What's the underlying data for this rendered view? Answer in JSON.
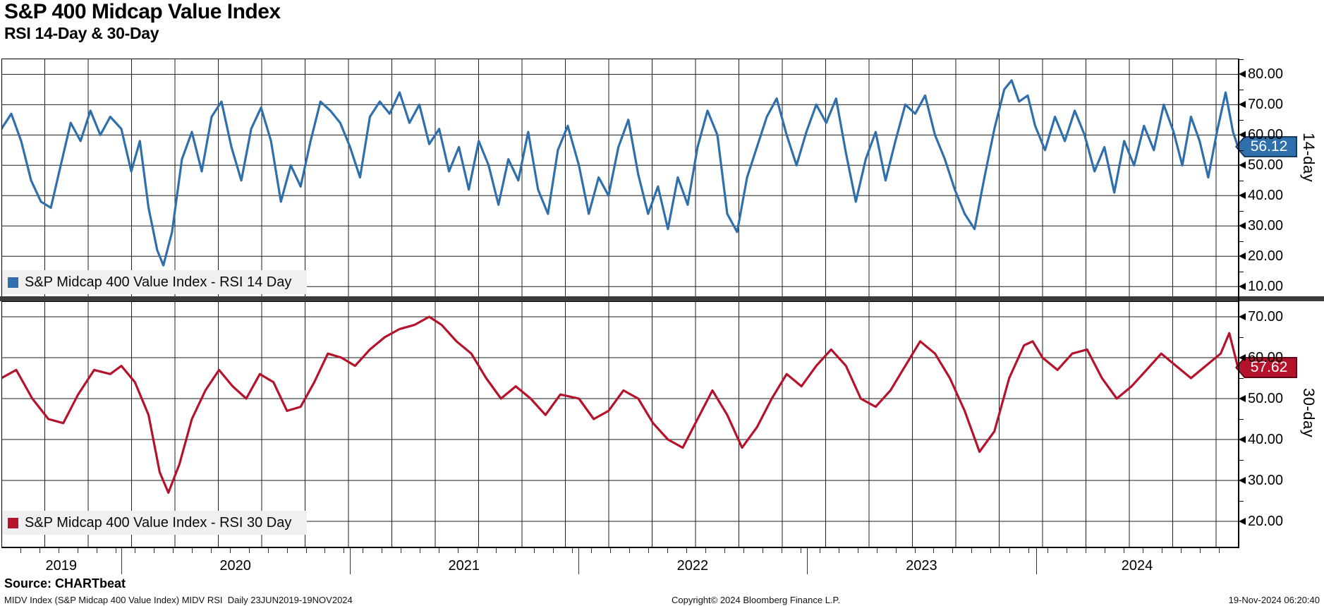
{
  "header": {
    "title": "S&P 400 Midcap Value Index",
    "subtitle": "RSI 14-Day & 30-Day"
  },
  "source_line": "Source: CHARTbeat",
  "footer": {
    "left": "MIDV Index (S&P Midcap 400 Value Index) MIDV RSI  Daily 23JUN2019-19NOV2024",
    "center": "Copyright© 2024 Bloomberg Finance L.P.",
    "right": "19-Nov-2024 06:20:40"
  },
  "xaxis": {
    "range_text": "23JUN2019-19NOV2024",
    "year_labels": [
      "2019",
      "2020",
      "2021",
      "2022",
      "2023",
      "2024"
    ],
    "year_boundaries_frac": [
      0.0967,
      0.2816,
      0.4665,
      0.6514,
      0.8368
    ],
    "months_total": 65
  },
  "chart_data": [
    {
      "type": "line",
      "name": "RSI 14 Day",
      "legend": "S&P Midcap 400 Value Index - RSI 14 Day",
      "axis_label": "14-day",
      "color": "#2e6fac",
      "badge": {
        "value": "56.12",
        "bg": "#2e6fac",
        "border": "#173a5e"
      },
      "last_value": 56.12,
      "ylim": [
        6.8,
        85.2
      ],
      "yticks": [
        10,
        20,
        30,
        40,
        50,
        60,
        70,
        80
      ],
      "ytick_labels": [
        "10.00",
        "20.00",
        "30.00",
        "40.00",
        "50.00",
        "60.00",
        "70.00",
        "80.00"
      ],
      "x_encoding": "fraction of date range 23JUN2019-19NOV2024",
      "points": [
        [
          0.0,
          62
        ],
        [
          0.008,
          67
        ],
        [
          0.016,
          58
        ],
        [
          0.024,
          45
        ],
        [
          0.032,
          38
        ],
        [
          0.04,
          36
        ],
        [
          0.048,
          50
        ],
        [
          0.056,
          64
        ],
        [
          0.064,
          58
        ],
        [
          0.072,
          68
        ],
        [
          0.08,
          60
        ],
        [
          0.088,
          66
        ],
        [
          0.097,
          62
        ],
        [
          0.105,
          48
        ],
        [
          0.112,
          58
        ],
        [
          0.119,
          36
        ],
        [
          0.126,
          22
        ],
        [
          0.131,
          17
        ],
        [
          0.138,
          28
        ],
        [
          0.146,
          52
        ],
        [
          0.154,
          61
        ],
        [
          0.162,
          48
        ],
        [
          0.17,
          66
        ],
        [
          0.178,
          71
        ],
        [
          0.186,
          56
        ],
        [
          0.194,
          45
        ],
        [
          0.202,
          62
        ],
        [
          0.21,
          69
        ],
        [
          0.218,
          58
        ],
        [
          0.226,
          38
        ],
        [
          0.234,
          50
        ],
        [
          0.242,
          43
        ],
        [
          0.25,
          58
        ],
        [
          0.258,
          71
        ],
        [
          0.266,
          68
        ],
        [
          0.274,
          64
        ],
        [
          0.282,
          56
        ],
        [
          0.29,
          46
        ],
        [
          0.298,
          66
        ],
        [
          0.306,
          71
        ],
        [
          0.314,
          67
        ],
        [
          0.322,
          74
        ],
        [
          0.33,
          64
        ],
        [
          0.338,
          70
        ],
        [
          0.346,
          57
        ],
        [
          0.354,
          62
        ],
        [
          0.362,
          48
        ],
        [
          0.37,
          56
        ],
        [
          0.378,
          42
        ],
        [
          0.386,
          58
        ],
        [
          0.394,
          50
        ],
        [
          0.402,
          37
        ],
        [
          0.41,
          52
        ],
        [
          0.418,
          45
        ],
        [
          0.426,
          61
        ],
        [
          0.434,
          42
        ],
        [
          0.442,
          34
        ],
        [
          0.45,
          55
        ],
        [
          0.458,
          63
        ],
        [
          0.467,
          50
        ],
        [
          0.475,
          34
        ],
        [
          0.483,
          46
        ],
        [
          0.491,
          40
        ],
        [
          0.499,
          56
        ],
        [
          0.507,
          65
        ],
        [
          0.515,
          47
        ],
        [
          0.523,
          34
        ],
        [
          0.531,
          43
        ],
        [
          0.539,
          29
        ],
        [
          0.547,
          46
        ],
        [
          0.555,
          37
        ],
        [
          0.563,
          56
        ],
        [
          0.571,
          68
        ],
        [
          0.579,
          60
        ],
        [
          0.587,
          34
        ],
        [
          0.595,
          28
        ],
        [
          0.603,
          46
        ],
        [
          0.611,
          56
        ],
        [
          0.619,
          66
        ],
        [
          0.627,
          72
        ],
        [
          0.635,
          60
        ],
        [
          0.643,
          50
        ],
        [
          0.651,
          61
        ],
        [
          0.659,
          70
        ],
        [
          0.667,
          64
        ],
        [
          0.675,
          72
        ],
        [
          0.683,
          54
        ],
        [
          0.691,
          38
        ],
        [
          0.699,
          52
        ],
        [
          0.707,
          61
        ],
        [
          0.715,
          45
        ],
        [
          0.723,
          58
        ],
        [
          0.731,
          70
        ],
        [
          0.739,
          67
        ],
        [
          0.747,
          73
        ],
        [
          0.755,
          60
        ],
        [
          0.763,
          52
        ],
        [
          0.771,
          42
        ],
        [
          0.779,
          34
        ],
        [
          0.787,
          29
        ],
        [
          0.795,
          46
        ],
        [
          0.803,
          62
        ],
        [
          0.811,
          75
        ],
        [
          0.817,
          78
        ],
        [
          0.823,
          71
        ],
        [
          0.83,
          73
        ],
        [
          0.836,
          63
        ],
        [
          0.844,
          55
        ],
        [
          0.852,
          66
        ],
        [
          0.86,
          58
        ],
        [
          0.868,
          68
        ],
        [
          0.876,
          60
        ],
        [
          0.884,
          48
        ],
        [
          0.892,
          56
        ],
        [
          0.9,
          41
        ],
        [
          0.908,
          58
        ],
        [
          0.916,
          50
        ],
        [
          0.924,
          63
        ],
        [
          0.932,
          55
        ],
        [
          0.94,
          70
        ],
        [
          0.948,
          61
        ],
        [
          0.955,
          50
        ],
        [
          0.962,
          66
        ],
        [
          0.969,
          58
        ],
        [
          0.976,
          46
        ],
        [
          0.983,
          61
        ],
        [
          0.99,
          74
        ],
        [
          0.996,
          61
        ],
        [
          1.0,
          56.12
        ]
      ]
    },
    {
      "type": "line",
      "name": "RSI 30 Day",
      "legend": "S&P Midcap 400 Value Index - RSI 30 Day",
      "axis_label": "30-day",
      "color": "#b5122b",
      "badge": {
        "value": "57.62",
        "bg": "#b5122b",
        "border": "#5e0a16"
      },
      "last_value": 57.62,
      "ylim": [
        13.8,
        73.8
      ],
      "yticks": [
        20,
        30,
        40,
        50,
        60,
        70
      ],
      "ytick_labels": [
        "20.00",
        "30.00",
        "40.00",
        "50.00",
        "60.00",
        "70.00"
      ],
      "x_encoding": "fraction of date range 23JUN2019-19NOV2024",
      "points": [
        [
          0.0,
          55
        ],
        [
          0.012,
          57
        ],
        [
          0.025,
          50
        ],
        [
          0.038,
          45
        ],
        [
          0.05,
          44
        ],
        [
          0.062,
          51
        ],
        [
          0.075,
          57
        ],
        [
          0.088,
          56
        ],
        [
          0.097,
          58
        ],
        [
          0.108,
          54
        ],
        [
          0.119,
          46
        ],
        [
          0.128,
          32
        ],
        [
          0.135,
          27
        ],
        [
          0.144,
          34
        ],
        [
          0.154,
          45
        ],
        [
          0.165,
          52
        ],
        [
          0.176,
          57
        ],
        [
          0.187,
          53
        ],
        [
          0.198,
          50
        ],
        [
          0.209,
          56
        ],
        [
          0.22,
          54
        ],
        [
          0.231,
          47
        ],
        [
          0.242,
          48
        ],
        [
          0.253,
          54
        ],
        [
          0.264,
          61
        ],
        [
          0.275,
          60
        ],
        [
          0.286,
          58
        ],
        [
          0.298,
          62
        ],
        [
          0.31,
          65
        ],
        [
          0.322,
          67
        ],
        [
          0.334,
          68
        ],
        [
          0.346,
          70
        ],
        [
          0.356,
          68
        ],
        [
          0.368,
          64
        ],
        [
          0.38,
          61
        ],
        [
          0.392,
          55
        ],
        [
          0.404,
          50
        ],
        [
          0.416,
          53
        ],
        [
          0.428,
          50
        ],
        [
          0.44,
          46
        ],
        [
          0.452,
          51
        ],
        [
          0.467,
          50
        ],
        [
          0.479,
          45
        ],
        [
          0.491,
          47
        ],
        [
          0.503,
          52
        ],
        [
          0.515,
          50
        ],
        [
          0.527,
          44
        ],
        [
          0.539,
          40
        ],
        [
          0.551,
          38
        ],
        [
          0.563,
          45
        ],
        [
          0.575,
          52
        ],
        [
          0.587,
          46
        ],
        [
          0.599,
          38
        ],
        [
          0.611,
          43
        ],
        [
          0.623,
          50
        ],
        [
          0.635,
          56
        ],
        [
          0.647,
          53
        ],
        [
          0.659,
          58
        ],
        [
          0.671,
          62
        ],
        [
          0.683,
          58
        ],
        [
          0.695,
          50
        ],
        [
          0.707,
          48
        ],
        [
          0.719,
          52
        ],
        [
          0.731,
          58
        ],
        [
          0.743,
          64
        ],
        [
          0.755,
          61
        ],
        [
          0.767,
          55
        ],
        [
          0.779,
          47
        ],
        [
          0.791,
          37
        ],
        [
          0.803,
          42
        ],
        [
          0.815,
          55
        ],
        [
          0.827,
          63
        ],
        [
          0.834,
          64
        ],
        [
          0.842,
          60
        ],
        [
          0.854,
          57
        ],
        [
          0.866,
          61
        ],
        [
          0.878,
          62
        ],
        [
          0.89,
          55
        ],
        [
          0.902,
          50
        ],
        [
          0.914,
          53
        ],
        [
          0.926,
          57
        ],
        [
          0.938,
          61
        ],
        [
          0.95,
          58
        ],
        [
          0.962,
          55
        ],
        [
          0.974,
          58
        ],
        [
          0.986,
          61
        ],
        [
          0.993,
          66
        ],
        [
          1.0,
          57.62
        ]
      ]
    }
  ]
}
